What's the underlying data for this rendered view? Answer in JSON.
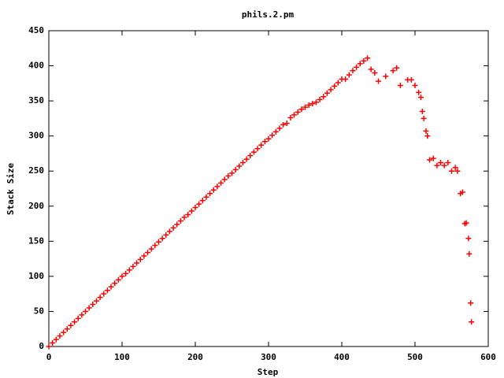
{
  "chart_data": {
    "type": "scatter",
    "title": "phils.2.pm",
    "xlabel": "Step",
    "ylabel": "Stack Size",
    "color": "#ff0000",
    "xlim": [
      0,
      600
    ],
    "xticks": [
      0,
      100,
      200,
      300,
      400,
      500,
      600
    ],
    "ylim": [
      0,
      450
    ],
    "yticks": [
      0,
      50,
      100,
      150,
      200,
      250,
      300,
      350,
      400,
      450
    ],
    "x": [
      0,
      5,
      10,
      15,
      20,
      25,
      30,
      35,
      40,
      45,
      50,
      55,
      60,
      65,
      70,
      75,
      80,
      85,
      90,
      95,
      100,
      105,
      110,
      115,
      120,
      125,
      130,
      135,
      140,
      145,
      150,
      155,
      160,
      165,
      170,
      175,
      180,
      185,
      190,
      195,
      200,
      205,
      210,
      215,
      220,
      225,
      230,
      235,
      240,
      245,
      250,
      255,
      260,
      265,
      270,
      275,
      280,
      285,
      290,
      295,
      300,
      305,
      310,
      315,
      320,
      325,
      330,
      335,
      340,
      345,
      350,
      355,
      360,
      365,
      370,
      375,
      380,
      385,
      390,
      395,
      400,
      405,
      410,
      415,
      420,
      425,
      430,
      435,
      440,
      445,
      450,
      460,
      470,
      475,
      480,
      490,
      495,
      500,
      505,
      508,
      510,
      512,
      515,
      517,
      520,
      525,
      530,
      535,
      540,
      545,
      550,
      555,
      558,
      562,
      565,
      568,
      570,
      573,
      574,
      576,
      577
    ],
    "values": [
      0,
      5,
      10,
      15,
      20,
      25,
      30,
      35,
      40,
      45,
      50,
      55,
      60,
      65,
      70,
      75,
      80,
      85,
      90,
      95,
      100,
      104,
      109,
      114,
      119,
      124,
      129,
      134,
      139,
      144,
      149,
      154,
      159,
      164,
      169,
      174,
      179,
      184,
      188,
      193,
      198,
      203,
      208,
      213,
      218,
      223,
      228,
      233,
      238,
      243,
      247,
      252,
      257,
      262,
      267,
      272,
      277,
      282,
      287,
      292,
      296,
      301,
      306,
      311,
      316,
      318,
      326,
      330,
      334,
      338,
      341,
      344,
      346,
      348,
      352,
      356,
      361,
      366,
      371,
      376,
      381,
      381,
      387,
      393,
      398,
      403,
      407,
      411,
      395,
      390,
      378,
      385,
      393,
      397,
      372,
      380,
      380,
      372,
      362,
      355,
      335,
      325,
      307,
      300,
      266,
      268,
      258,
      262,
      258,
      262,
      250,
      255,
      250,
      218,
      220,
      175,
      176,
      154,
      132,
      62,
      35
    ]
  }
}
